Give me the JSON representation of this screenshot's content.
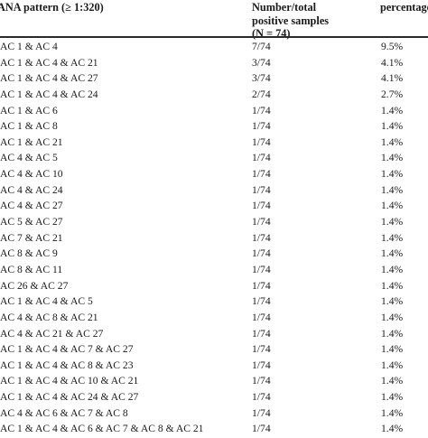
{
  "table": {
    "headers": {
      "pattern": "ANA pattern (≥ 1:320)",
      "count_line1": "Number/total",
      "count_line2": "positive samples",
      "count_line3": "(N = 74)",
      "percentage": "percentage"
    },
    "rows": [
      {
        "pattern": "AC 1 & AC 4",
        "count": "7/74",
        "percentage": "9.5%"
      },
      {
        "pattern": "AC 1 & AC 4 & AC 21",
        "count": "3/74",
        "percentage": "4.1%"
      },
      {
        "pattern": "AC 1 & AC 4 & AC 27",
        "count": "3/74",
        "percentage": "4.1%"
      },
      {
        "pattern": "AC 1 & AC 4 & AC 24",
        "count": "2/74",
        "percentage": "2.7%"
      },
      {
        "pattern": "AC 1 & AC 6",
        "count": "1/74",
        "percentage": "1.4%"
      },
      {
        "pattern": "AC 1 & AC 8",
        "count": "1/74",
        "percentage": "1.4%"
      },
      {
        "pattern": "AC 1 & AC 21",
        "count": "1/74",
        "percentage": "1.4%"
      },
      {
        "pattern": "AC 4 & AC 5",
        "count": "1/74",
        "percentage": "1.4%"
      },
      {
        "pattern": "AC 4 & AC 10",
        "count": "1/74",
        "percentage": "1.4%"
      },
      {
        "pattern": "AC 4 & AC 24",
        "count": "1/74",
        "percentage": "1.4%"
      },
      {
        "pattern": "AC 4 & AC 27",
        "count": "1/74",
        "percentage": "1.4%"
      },
      {
        "pattern": "AC 5 & AC 27",
        "count": "1/74",
        "percentage": "1.4%"
      },
      {
        "pattern": "AC 7 & AC 21",
        "count": "1/74",
        "percentage": "1.4%"
      },
      {
        "pattern": "AC 8 & AC 9",
        "count": "1/74",
        "percentage": "1.4%"
      },
      {
        "pattern": "AC 8 & AC 11",
        "count": "1/74",
        "percentage": "1.4%"
      },
      {
        "pattern": "AC 26 & AC 27",
        "count": "1/74",
        "percentage": "1.4%"
      },
      {
        "pattern": "AC 1 & AC 4 & AC 5",
        "count": "1/74",
        "percentage": "1.4%"
      },
      {
        "pattern": "AC 4 & AC 8 & AC 21",
        "count": "1/74",
        "percentage": "1.4%"
      },
      {
        "pattern": "AC 4 & AC 21 & AC 27",
        "count": "1/74",
        "percentage": "1.4%"
      },
      {
        "pattern": "AC 1 & AC 4 & AC 7 & AC 27",
        "count": "1/74",
        "percentage": "1.4%"
      },
      {
        "pattern": "AC 1 & AC 4 & AC 8 & AC 23",
        "count": "1/74",
        "percentage": "1.4%"
      },
      {
        "pattern": "AC 1 & AC 4 & AC 10 & AC 21",
        "count": "1/74",
        "percentage": "1.4%"
      },
      {
        "pattern": "AC 1 & AC 4 & AC 24 & AC 27",
        "count": "1/74",
        "percentage": "1.4%"
      },
      {
        "pattern": "AC 4 & AC 6 & AC 7 & AC 8",
        "count": "1/74",
        "percentage": "1.4%"
      },
      {
        "pattern": "AC 1 & AC 4 & AC 6 & AC 7 & AC 8 & AC 21",
        "count": "1/74",
        "percentage": "1.4%"
      }
    ]
  }
}
